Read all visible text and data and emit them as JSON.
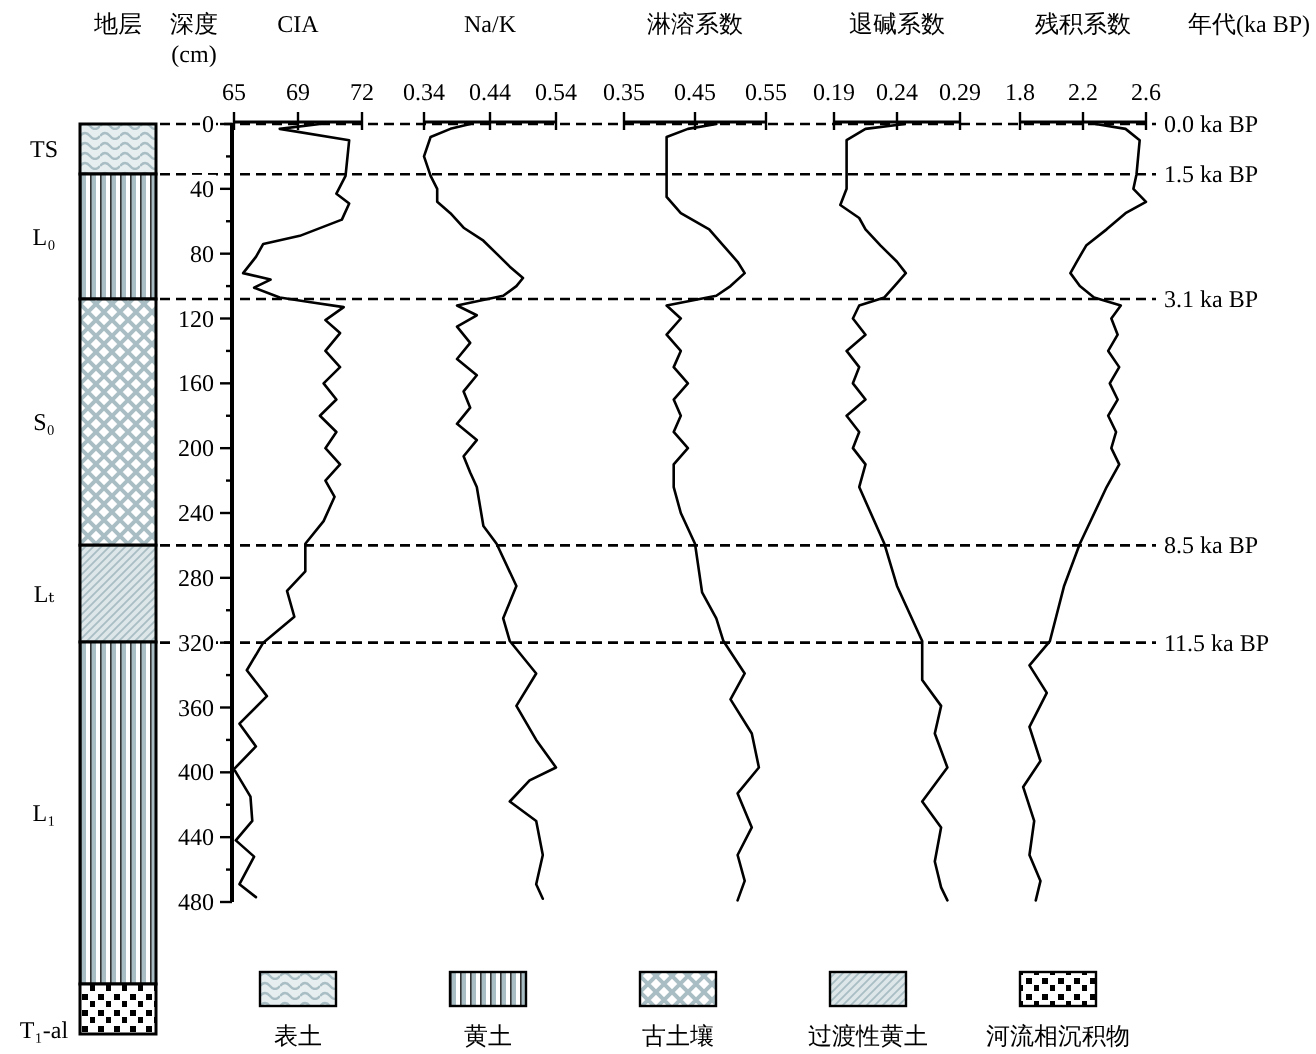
{
  "chart_data": [
    {
      "type": "other",
      "title": "地层",
      "annotations": [
        "TS",
        "L₀",
        "S₀",
        "Lₜ",
        "L₁",
        "T₁-al",
        "表土",
        "黄土",
        "古土壤",
        "过渡性黄土",
        "河流相沉积物"
      ]
    },
    {
      "type": "line",
      "title": "CIA",
      "ylabel": "深度 (cm)",
      "xlim": [
        65,
        72
      ],
      "xticks": [
        65,
        {
          "value": 68.5,
          "label": "69"
        },
        72
      ],
      "ylim": [
        480,
        0
      ],
      "yticks": [
        0,
        {
          "value": 20,
          "label": null
        },
        40,
        {
          "value": 60,
          "label": null
        },
        80,
        {
          "value": 100,
          "label": null
        },
        120,
        {
          "value": 140,
          "label": null
        },
        160,
        {
          "value": 180,
          "label": null
        },
        200,
        {
          "value": 220,
          "label": null
        },
        240,
        {
          "value": 260,
          "label": null
        },
        280,
        {
          "value": 300,
          "label": null
        },
        320,
        {
          "value": 340,
          "label": null
        },
        360,
        {
          "value": 380,
          "label": null
        },
        400,
        {
          "value": 420,
          "label": null
        },
        440,
        {
          "value": 460,
          "label": null
        },
        480
      ],
      "series": [
        {
          "color": "#000000",
          "x": [
            69.7,
            67.5,
            71.3,
            71.1,
            70.6,
            71.3,
            70.9,
            68.6,
            66.6,
            66.2,
            65.5,
            67.0,
            66.1,
            67.5,
            69.2,
            71.0,
            70.0,
            70.8,
            70.0,
            70.8,
            69.9,
            70.6,
            69.7,
            70.6,
            70.0,
            70.8,
            70.0,
            70.5,
            69.9,
            68.9,
            68.9,
            67.9,
            68.3,
            66.6,
            65.7,
            66.8,
            65.3,
            66.2,
            65.0,
            65.9,
            66.0,
            65.1,
            66.1,
            65.3,
            66.2
          ],
          "values": [
            0,
            3,
            10,
            32,
            43,
            49,
            59,
            69,
            74,
            82,
            92,
            96,
            101,
            107,
            110,
            113,
            121,
            129,
            140,
            150,
            160,
            170,
            180,
            190,
            200,
            210,
            220,
            230,
            245,
            259,
            276,
            288,
            304,
            320,
            337,
            353,
            370,
            384,
            398,
            415,
            430,
            442,
            452,
            469,
            477
          ]
        }
      ],
      "ref_lines": [
        {
          "axis": "y",
          "value": 0,
          "label": "0.0 ka BP"
        },
        {
          "axis": "y",
          "value": 31,
          "label": "1.5 ka BP",
          "line_style": "dashed"
        },
        {
          "axis": "y",
          "value": 108,
          "label": "3.1 ka BP",
          "line_style": "dashed"
        },
        {
          "axis": "y",
          "value": 260,
          "label": "8.5 ka BP",
          "line_style": "dashed"
        },
        {
          "axis": "y",
          "value": 320,
          "label": "11.5 ka BP",
          "line_style": "dashed"
        }
      ]
    },
    {
      "type": "line",
      "title": "Na/K",
      "xlim": [
        0.34,
        0.54
      ],
      "xticks": [
        0.34,
        0.44,
        0.54
      ],
      "ylim": [
        480,
        0
      ],
      "tick_labels": "x",
      "series": [
        {
          "color": "#000000",
          "x": [
            0.41,
            0.38,
            0.35,
            0.34,
            0.35,
            0.36,
            0.36,
            0.38,
            0.4,
            0.43,
            0.45,
            0.47,
            0.49,
            0.48,
            0.46,
            0.39,
            0.42,
            0.39,
            0.41,
            0.39,
            0.42,
            0.4,
            0.41,
            0.39,
            0.42,
            0.4,
            0.41,
            0.42,
            0.43,
            0.45,
            0.48,
            0.46,
            0.47,
            0.51,
            0.48,
            0.51,
            0.54,
            0.5,
            0.47,
            0.51,
            0.52,
            0.51,
            0.52
          ],
          "values": [
            0,
            3,
            8,
            20,
            32,
            40,
            48,
            55,
            64,
            72,
            80,
            88,
            95,
            100,
            106,
            112,
            118,
            125,
            135,
            145,
            155,
            165,
            175,
            185,
            195,
            205,
            215,
            224,
            248,
            259,
            285,
            305,
            319,
            339,
            359,
            380,
            397,
            405,
            418,
            430,
            451,
            469,
            478
          ]
        }
      ]
    },
    {
      "type": "line",
      "title": "淋溶系数",
      "xlim": [
        0.35,
        0.55
      ],
      "xticks": [
        0.35,
        0.45,
        0.55
      ],
      "ylim": [
        480,
        0
      ],
      "tick_labels": "x",
      "series": [
        {
          "color": "#000000",
          "x": [
            0.48,
            0.44,
            0.41,
            0.41,
            0.41,
            0.43,
            0.47,
            0.49,
            0.51,
            0.52,
            0.5,
            0.48,
            0.41,
            0.43,
            0.41,
            0.43,
            0.42,
            0.44,
            0.42,
            0.43,
            0.42,
            0.44,
            0.42,
            0.42,
            0.43,
            0.45,
            0.46,
            0.48,
            0.49,
            0.52,
            0.5,
            0.53,
            0.54,
            0.51,
            0.53,
            0.51,
            0.52,
            0.51
          ],
          "values": [
            0,
            3,
            8,
            30,
            45,
            55,
            65,
            75,
            85,
            92,
            100,
            106,
            112,
            120,
            130,
            140,
            150,
            160,
            170,
            180,
            190,
            200,
            210,
            224,
            240,
            259,
            289,
            305,
            319,
            339,
            355,
            376,
            397,
            413,
            434,
            451,
            467,
            479
          ]
        }
      ]
    },
    {
      "type": "line",
      "title": "退碱系数",
      "xlim": [
        0.19,
        0.29
      ],
      "xticks": [
        0.19,
        0.24,
        0.29
      ],
      "ylim": [
        480,
        0
      ],
      "tick_labels": "x",
      "series": [
        {
          "color": "#000000",
          "x": [
            0.246,
            0.215,
            0.2,
            0.2,
            0.2,
            0.195,
            0.21,
            0.215,
            0.227,
            0.24,
            0.247,
            0.238,
            0.23,
            0.21,
            0.205,
            0.215,
            0.2,
            0.21,
            0.205,
            0.215,
            0.2,
            0.21,
            0.205,
            0.215,
            0.21,
            0.23,
            0.24,
            0.26,
            0.26,
            0.275,
            0.27,
            0.28,
            0.26,
            0.275,
            0.27,
            0.275,
            0.28
          ],
          "values": [
            0,
            3,
            10,
            30,
            40,
            50,
            58,
            65,
            75,
            85,
            92,
            100,
            107,
            112,
            120,
            130,
            140,
            150,
            160,
            170,
            180,
            190,
            200,
            210,
            224,
            259,
            285,
            319,
            343,
            359,
            376,
            397,
            418,
            434,
            455,
            471,
            479
          ]
        }
      ]
    },
    {
      "type": "line",
      "title": "残积系数",
      "xlim": [
        1.8,
        2.6
      ],
      "xticks": [
        1.8,
        2.2,
        2.6
      ],
      "ylim": [
        480,
        0
      ],
      "tick_labels": "x",
      "series": [
        {
          "color": "#000000",
          "x": [
            2.28,
            2.47,
            2.56,
            2.54,
            2.52,
            2.6,
            2.47,
            2.35,
            2.22,
            2.16,
            2.12,
            2.18,
            2.27,
            2.44,
            2.38,
            2.42,
            2.36,
            2.43,
            2.37,
            2.42,
            2.36,
            2.41,
            2.38,
            2.43,
            2.35,
            2.18,
            2.08,
            1.99,
            1.86,
            1.97,
            1.86,
            1.93,
            1.82,
            1.89,
            1.86,
            1.93,
            1.9
          ],
          "values": [
            0,
            3,
            10,
            31,
            40,
            48,
            55,
            65,
            75,
            85,
            92,
            100,
            107,
            112,
            120,
            130,
            140,
            150,
            160,
            170,
            180,
            190,
            200,
            210,
            224,
            259,
            285,
            319,
            334,
            351,
            372,
            393,
            409,
            430,
            451,
            467,
            479
          ]
        }
      ],
      "annotations": [
        "年代(ka BP)"
      ]
    }
  ]
}
